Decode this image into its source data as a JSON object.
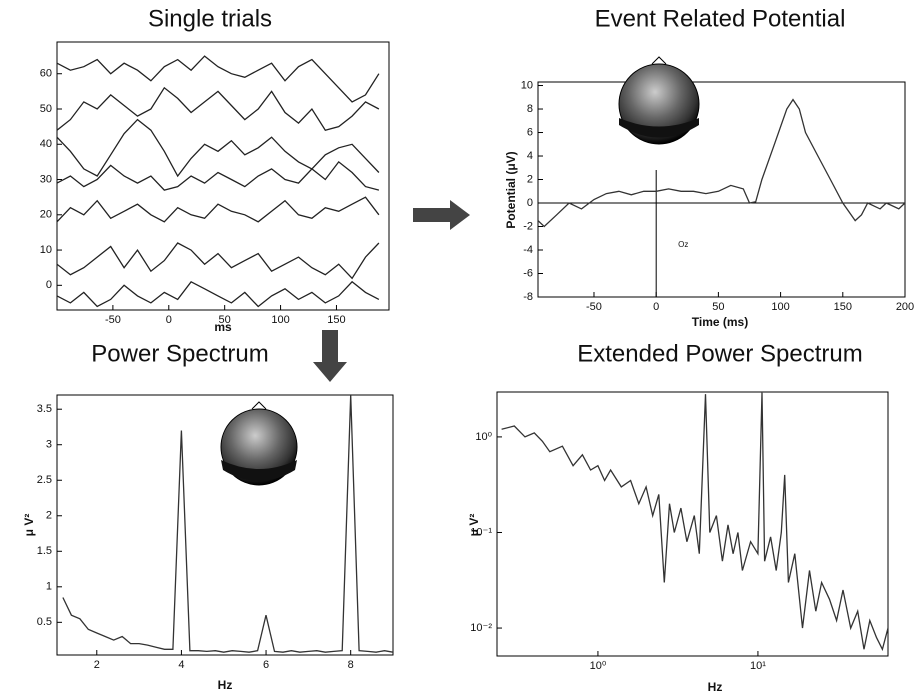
{
  "chart_data": [
    {
      "type": "line",
      "title": "Single trials",
      "xlabel": "ms",
      "color": "#222",
      "x": [
        -100,
        -88,
        -76,
        -64,
        -52,
        -40,
        -28,
        -16,
        -4,
        8,
        20,
        32,
        44,
        56,
        68,
        80,
        92,
        104,
        116,
        128,
        140,
        152,
        164,
        176,
        188
      ],
      "series": [
        {
          "values": [
            63,
            61,
            62,
            64,
            60,
            63,
            61,
            58,
            62,
            64,
            61,
            65,
            62,
            60,
            59,
            61,
            63,
            58,
            62,
            64,
            60,
            56,
            52,
            54,
            60
          ]
        },
        {
          "values": [
            44,
            47,
            52,
            50,
            54,
            51,
            48,
            50,
            56,
            53,
            49,
            52,
            55,
            51,
            47,
            50,
            55,
            49,
            46,
            50,
            44,
            45,
            48,
            52,
            50
          ]
        },
        {
          "values": [
            42,
            38,
            33,
            31,
            37,
            43,
            47,
            44,
            38,
            31,
            36,
            40,
            38,
            41,
            37,
            39,
            42,
            38,
            35,
            33,
            37,
            39,
            40,
            36,
            32
          ]
        },
        {
          "values": [
            29,
            31,
            28,
            30,
            34,
            31,
            29,
            31,
            27,
            28,
            31,
            29,
            32,
            30,
            28,
            31,
            33,
            30,
            29,
            33,
            30,
            35,
            32,
            28,
            27
          ]
        },
        {
          "values": [
            18,
            22,
            20,
            24,
            19,
            21,
            23,
            20,
            18,
            22,
            20,
            19,
            23,
            21,
            20,
            18,
            21,
            24,
            20,
            19,
            22,
            21,
            23,
            25,
            20
          ]
        },
        {
          "values": [
            6,
            3,
            5,
            8,
            11,
            5,
            10,
            4,
            7,
            12,
            10,
            6,
            9,
            5,
            7,
            9,
            4,
            6,
            8,
            5,
            3,
            6,
            2,
            8,
            12
          ]
        },
        {
          "values": [
            -3,
            -5,
            -2,
            -6,
            -4,
            0,
            -3,
            -5,
            -2,
            -4,
            1,
            -1,
            -3,
            -5,
            -2,
            -6,
            -3,
            -1,
            -4,
            -2,
            -5,
            -3,
            1,
            -2,
            -4
          ]
        }
      ],
      "xlim": [
        -100,
        197
      ],
      "xticks": [
        -50,
        0,
        50,
        100,
        150
      ],
      "ylim": [
        -7,
        69
      ],
      "yticks": [
        0,
        10,
        20,
        30,
        40,
        50,
        60
      ]
    },
    {
      "type": "line",
      "title": "Event Related Potential",
      "xlabel": "Time (ms)",
      "ylabel": "Potential (μV)",
      "color": "#333",
      "annotations": [
        "Oz"
      ],
      "x": [
        -95,
        -90,
        -80,
        -70,
        -60,
        -50,
        -40,
        -30,
        -20,
        -10,
        0,
        10,
        20,
        30,
        40,
        50,
        60,
        70,
        75,
        80,
        85,
        95,
        105,
        110,
        115,
        120,
        130,
        140,
        150,
        160,
        165,
        170,
        180,
        185,
        195,
        200
      ],
      "values": [
        -1.5,
        -2,
        -1,
        0,
        -0.5,
        0.3,
        0.8,
        1,
        0.7,
        1,
        1,
        1.2,
        1,
        1,
        0.8,
        1,
        1.5,
        1.2,
        0,
        0.1,
        2,
        5,
        8,
        8.8,
        8,
        6,
        4,
        2,
        0,
        -1.5,
        -1,
        0,
        -0.5,
        0,
        -0.5,
        0
      ],
      "xlim": [
        -95,
        200
      ],
      "xticks": [
        -50,
        0,
        50,
        100,
        150,
        200
      ],
      "ylim": [
        -8,
        10.3
      ],
      "yticks": [
        -8,
        -6,
        -4,
        -2,
        0,
        2,
        4,
        6,
        8,
        10
      ]
    },
    {
      "type": "line",
      "title": "Power Spectrum",
      "xlabel": "Hz",
      "ylabel": "μ V²",
      "color": "#333",
      "x": [
        1.2,
        1.4,
        1.6,
        1.8,
        2.0,
        2.2,
        2.4,
        2.6,
        2.8,
        3.0,
        3.2,
        3.4,
        3.6,
        3.8,
        4.0,
        4.2,
        4.4,
        4.6,
        4.8,
        5.0,
        5.2,
        5.4,
        5.6,
        5.8,
        6.0,
        6.2,
        6.4,
        6.6,
        6.8,
        7.0,
        7.2,
        7.4,
        7.6,
        7.8,
        8.0,
        8.2,
        8.4,
        8.6,
        8.8,
        9.0
      ],
      "values": [
        0.85,
        0.6,
        0.55,
        0.4,
        0.35,
        0.3,
        0.25,
        0.3,
        0.2,
        0.2,
        0.18,
        0.15,
        0.12,
        0.12,
        3.2,
        0.1,
        0.1,
        0.09,
        0.1,
        0.08,
        0.1,
        0.09,
        0.08,
        0.1,
        0.6,
        0.09,
        0.08,
        0.1,
        0.08,
        0.09,
        0.1,
        0.08,
        0.09,
        0.1,
        3.7,
        0.1,
        0.09,
        0.08,
        0.1,
        0.08
      ],
      "xlim": [
        1.06,
        9
      ],
      "xticks": [
        2,
        4,
        6,
        8
      ],
      "ylim": [
        0.04,
        3.7
      ],
      "yticks": [
        0.5,
        1,
        1.5,
        2,
        2.5,
        3,
        3.5
      ]
    },
    {
      "type": "line",
      "title": "Extended Power Spectrum",
      "xlabel": "Hz",
      "ylabel": "μ V²",
      "color": "#333",
      "xscale": "log",
      "yscale": "log",
      "x": [
        0.25,
        0.3,
        0.35,
        0.4,
        0.45,
        0.5,
        0.6,
        0.7,
        0.8,
        0.9,
        1.0,
        1.1,
        1.2,
        1.4,
        1.6,
        1.8,
        2.0,
        2.2,
        2.4,
        2.6,
        2.8,
        3.0,
        3.3,
        3.6,
        4.0,
        4.3,
        4.7,
        5.0,
        5.5,
        6.0,
        6.5,
        7.0,
        7.5,
        8.0,
        9.0,
        10.0,
        10.6,
        11.0,
        12,
        13,
        14,
        14.7,
        15.5,
        17,
        19,
        21,
        23,
        25,
        28,
        31,
        34,
        38,
        42,
        46,
        50,
        55,
        60,
        65
      ],
      "values": [
        1.2,
        1.3,
        1.0,
        1.1,
        0.9,
        0.7,
        0.8,
        0.5,
        0.65,
        0.45,
        0.5,
        0.35,
        0.45,
        0.3,
        0.35,
        0.2,
        0.3,
        0.15,
        0.25,
        0.03,
        0.2,
        0.1,
        0.18,
        0.08,
        0.15,
        0.06,
        2.8,
        0.1,
        0.15,
        0.05,
        0.12,
        0.06,
        0.1,
        0.04,
        0.08,
        0.06,
        2.9,
        0.05,
        0.09,
        0.04,
        0.1,
        0.4,
        0.03,
        0.06,
        0.01,
        0.04,
        0.015,
        0.03,
        0.02,
        0.012,
        0.025,
        0.01,
        0.015,
        0.006,
        0.012,
        0.008,
        0.006,
        0.01
      ],
      "xlim": [
        0.234,
        65
      ],
      "xticks": [
        {
          "value": 1,
          "label": "10⁰"
        },
        {
          "value": 10,
          "label": "10¹"
        }
      ],
      "ylim": [
        0.0051,
        2.95
      ],
      "yticks": [
        {
          "value": 0.01,
          "label": "10⁻²"
        },
        {
          "value": 0.1,
          "label": "10⁻¹"
        },
        {
          "value": 1,
          "label": "10⁰"
        }
      ]
    }
  ]
}
